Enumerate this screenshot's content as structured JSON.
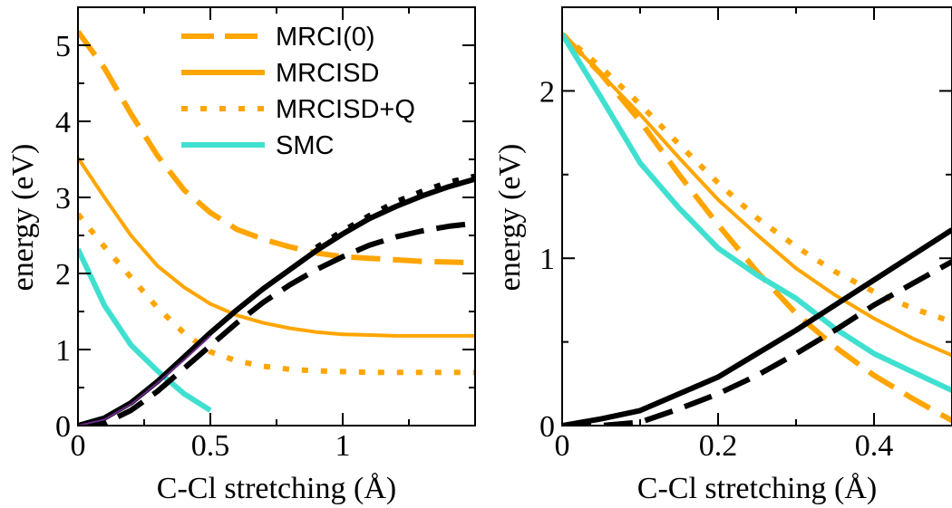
{
  "colors": {
    "orange": "#FFA500",
    "turquoise": "#40E0D0",
    "black": "#000000",
    "purple": "#6a2a8a"
  },
  "chart_data": [
    {
      "type": "line",
      "xlabel": "C-Cl stretching (Å)",
      "ylabel": "energy (eV)",
      "xlim": [
        0,
        1.5
      ],
      "ylim": [
        0,
        5.5
      ],
      "xticks": [
        0,
        0.5,
        1
      ],
      "xtick_labels": [
        "0",
        "0.5",
        "1"
      ],
      "yticks": [
        0,
        1,
        2,
        3,
        4,
        5
      ],
      "ytick_labels": [
        "0",
        "1",
        "2",
        "3",
        "4",
        "5"
      ],
      "legend_position": "top-center",
      "legend": [
        {
          "label": "MRCI(0)",
          "color": "orange",
          "style": "dashed"
        },
        {
          "label": "MRCISD",
          "color": "orange",
          "style": "solid"
        },
        {
          "label": "MRCISD+Q",
          "color": "orange",
          "style": "dotted"
        },
        {
          "label": "SMC",
          "color": "turquoise",
          "style": "solid"
        }
      ],
      "series": [
        {
          "color": "orange",
          "style": "dashed",
          "width": 6,
          "x": [
            0,
            0.1,
            0.2,
            0.3,
            0.4,
            0.5,
            0.6,
            0.7,
            0.8,
            0.9,
            1.0,
            1.1,
            1.2,
            1.3,
            1.4,
            1.5
          ],
          "y": [
            5.18,
            4.7,
            4.1,
            3.55,
            3.1,
            2.8,
            2.58,
            2.45,
            2.35,
            2.27,
            2.22,
            2.2,
            2.18,
            2.16,
            2.15,
            2.14
          ]
        },
        {
          "color": "orange",
          "style": "solid",
          "width": 4,
          "x": [
            0,
            0.1,
            0.2,
            0.3,
            0.4,
            0.5,
            0.6,
            0.7,
            0.8,
            0.9,
            1.0,
            1.1,
            1.2,
            1.3,
            1.4,
            1.5
          ],
          "y": [
            3.52,
            3.0,
            2.5,
            2.1,
            1.82,
            1.6,
            1.45,
            1.35,
            1.28,
            1.23,
            1.2,
            1.19,
            1.18,
            1.18,
            1.18,
            1.18
          ]
        },
        {
          "color": "orange",
          "style": "dotted",
          "width": 6,
          "x": [
            0,
            0.1,
            0.2,
            0.3,
            0.4,
            0.5,
            0.6,
            0.7,
            0.8,
            0.9,
            1.0,
            1.1,
            1.2,
            1.3,
            1.4,
            1.5
          ],
          "y": [
            2.78,
            2.35,
            1.95,
            1.55,
            1.22,
            0.97,
            0.85,
            0.78,
            0.74,
            0.72,
            0.71,
            0.7,
            0.7,
            0.7,
            0.7,
            0.7
          ]
        },
        {
          "color": "turquoise",
          "style": "solid",
          "width": 6,
          "x": [
            0,
            0.05,
            0.1,
            0.2,
            0.3,
            0.4,
            0.5
          ],
          "y": [
            2.32,
            1.95,
            1.58,
            1.06,
            0.72,
            0.42,
            0.2
          ]
        },
        {
          "color": "black",
          "style": "solid",
          "width": 6,
          "x": [
            0,
            0.1,
            0.2,
            0.3,
            0.4,
            0.5,
            0.6,
            0.7,
            0.8,
            0.9,
            1.0,
            1.1,
            1.2,
            1.3,
            1.4,
            1.5
          ],
          "y": [
            0.0,
            0.1,
            0.3,
            0.58,
            0.9,
            1.22,
            1.52,
            1.8,
            2.05,
            2.3,
            2.52,
            2.72,
            2.88,
            3.02,
            3.14,
            3.24
          ]
        },
        {
          "color": "black",
          "style": "dashed",
          "width": 6,
          "x": [
            0,
            0.1,
            0.2,
            0.3,
            0.4,
            0.5,
            0.6,
            0.7,
            0.8,
            0.9,
            1.0,
            1.1,
            1.2,
            1.3,
            1.4,
            1.5
          ],
          "y": [
            0.0,
            0.03,
            0.2,
            0.45,
            0.75,
            1.05,
            1.35,
            1.62,
            1.85,
            2.05,
            2.22,
            2.37,
            2.48,
            2.56,
            2.62,
            2.66
          ]
        },
        {
          "color": "black",
          "style": "dotted",
          "width": 6,
          "x": [
            0.9,
            1.0,
            1.1,
            1.2,
            1.3,
            1.4,
            1.5
          ],
          "y": [
            2.34,
            2.56,
            2.76,
            2.94,
            3.08,
            3.2,
            3.28
          ]
        },
        {
          "color": "purple",
          "style": "solid",
          "width": 2,
          "x": [
            0,
            0.1,
            0.2,
            0.3,
            0.4,
            0.5
          ],
          "y": [
            0.0,
            0.08,
            0.28,
            0.56,
            0.86,
            1.18
          ]
        }
      ]
    },
    {
      "type": "line",
      "xlabel": "C-Cl stretching (Å)",
      "ylabel": "energy (eV)",
      "xlim": [
        0,
        0.5
      ],
      "ylim": [
        0,
        2.5
      ],
      "xticks": [
        0,
        0.2,
        0.4
      ],
      "xtick_labels": [
        "0",
        "0.2",
        "0.4"
      ],
      "yticks": [
        0,
        1,
        2
      ],
      "ytick_labels": [
        "0",
        "1",
        "2"
      ],
      "series": [
        {
          "color": "orange",
          "style": "dashed",
          "width": 6,
          "x": [
            0,
            0.05,
            0.1,
            0.15,
            0.2,
            0.25,
            0.3,
            0.35,
            0.4,
            0.45,
            0.5
          ],
          "y": [
            2.34,
            2.1,
            1.82,
            1.5,
            1.2,
            0.92,
            0.67,
            0.47,
            0.3,
            0.16,
            0.03
          ]
        },
        {
          "color": "orange",
          "style": "solid",
          "width": 4,
          "x": [
            0,
            0.05,
            0.1,
            0.15,
            0.2,
            0.25,
            0.3,
            0.35,
            0.4,
            0.45,
            0.5
          ],
          "y": [
            2.34,
            2.1,
            1.86,
            1.6,
            1.35,
            1.14,
            0.94,
            0.78,
            0.64,
            0.52,
            0.42
          ]
        },
        {
          "color": "orange",
          "style": "dotted",
          "width": 6,
          "x": [
            0,
            0.05,
            0.1,
            0.15,
            0.2,
            0.25,
            0.3,
            0.35,
            0.4,
            0.45,
            0.5
          ],
          "y": [
            2.34,
            2.14,
            1.92,
            1.68,
            1.45,
            1.24,
            1.07,
            0.92,
            0.8,
            0.7,
            0.62
          ]
        },
        {
          "color": "turquoise",
          "style": "solid",
          "width": 6,
          "x": [
            0,
            0.05,
            0.1,
            0.15,
            0.2,
            0.25,
            0.3,
            0.35,
            0.4,
            0.45,
            0.5
          ],
          "y": [
            2.34,
            1.96,
            1.57,
            1.3,
            1.06,
            0.9,
            0.76,
            0.58,
            0.43,
            0.32,
            0.21
          ]
        },
        {
          "color": "black",
          "style": "solid",
          "width": 6,
          "x": [
            0,
            0.05,
            0.1,
            0.15,
            0.2,
            0.25,
            0.3,
            0.35,
            0.4,
            0.45,
            0.5
          ],
          "y": [
            0.0,
            0.04,
            0.09,
            0.19,
            0.29,
            0.43,
            0.57,
            0.72,
            0.87,
            1.02,
            1.17
          ]
        },
        {
          "color": "black",
          "style": "dashed",
          "width": 6,
          "x": [
            0,
            0.05,
            0.1,
            0.15,
            0.2,
            0.25,
            0.3,
            0.35,
            0.4,
            0.45,
            0.5
          ],
          "y": [
            0.0,
            0.0,
            0.02,
            0.1,
            0.19,
            0.3,
            0.43,
            0.57,
            0.72,
            0.85,
            0.98
          ]
        }
      ]
    }
  ]
}
